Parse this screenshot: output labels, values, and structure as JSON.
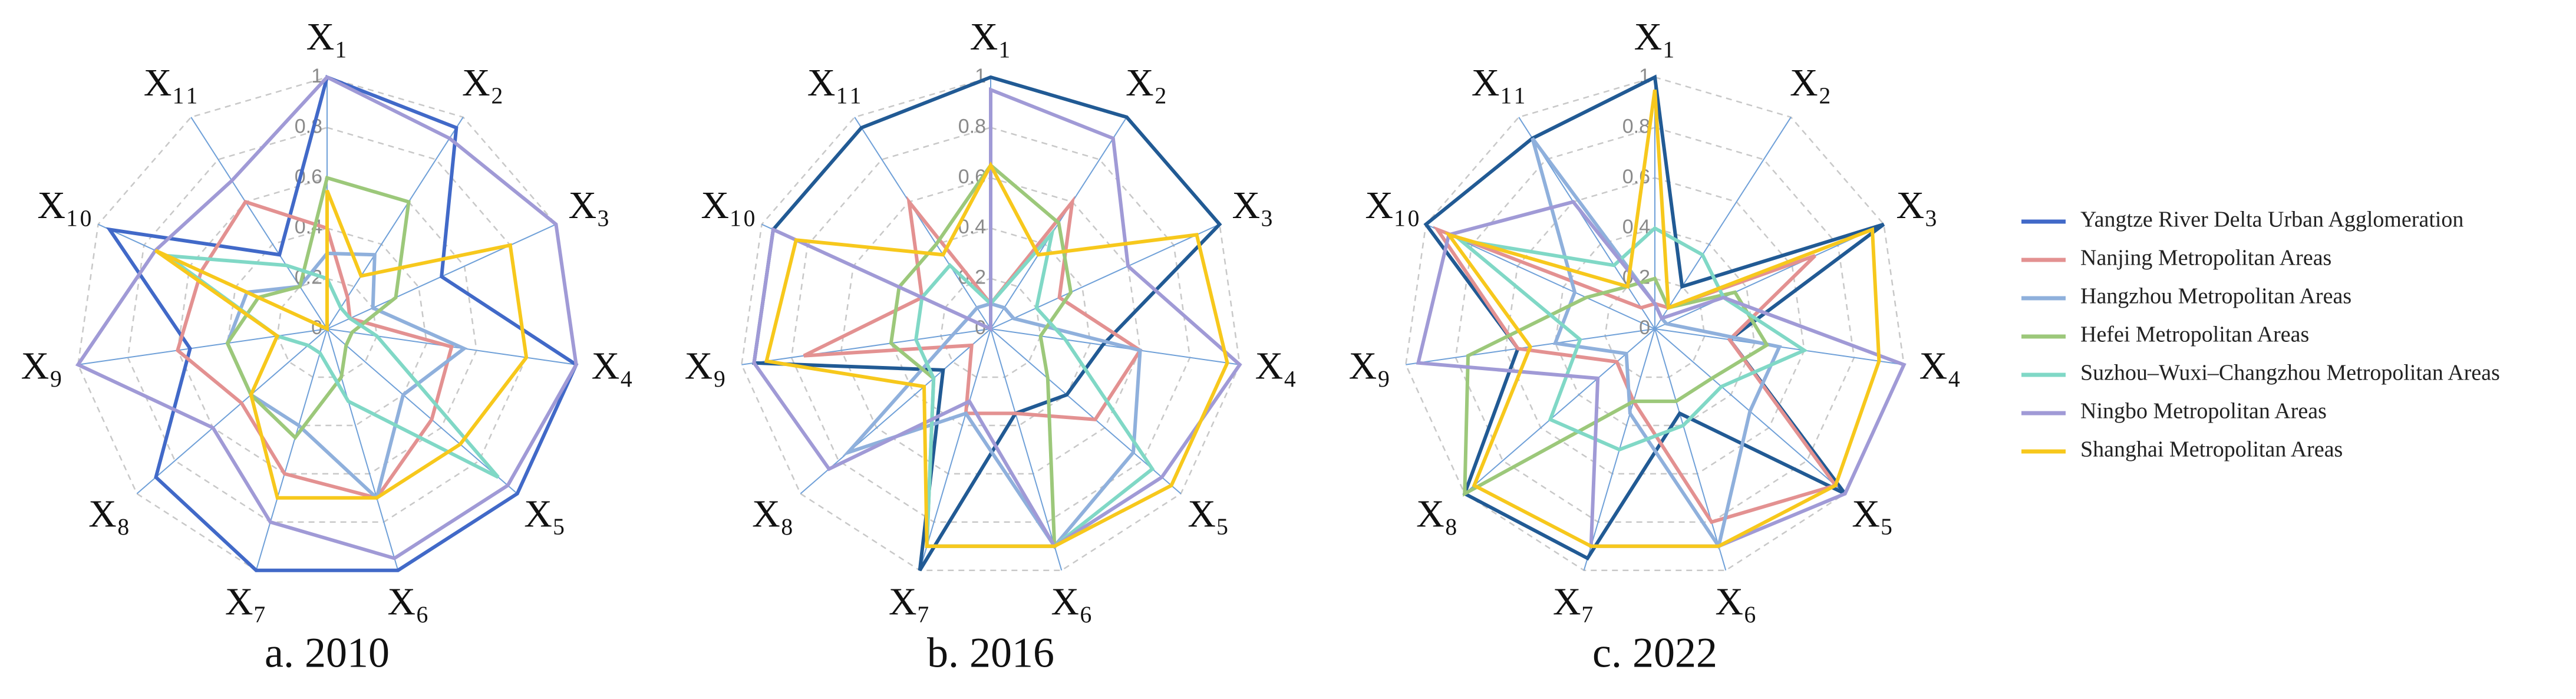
{
  "chart_data": [
    {
      "type": "radar",
      "title": "a. 2010",
      "categories": [
        "X₁",
        "X₂",
        "X₃",
        "X₄",
        "X₅",
        "X₆",
        "X₇",
        "X₈",
        "X₉",
        "X₁₀",
        "X₁₁"
      ],
      "rlim": [
        0,
        1
      ],
      "rticks": [
        0,
        0.2,
        0.4,
        0.6,
        0.8,
        1
      ],
      "series": [
        {
          "name": "Yangtze River Delta Urban Agglomeration",
          "color": "#4169c8",
          "values": [
            1,
            0.95,
            0.5,
            1,
            1,
            1,
            1,
            0.9,
            0.55,
            0.95,
            0.35
          ]
        },
        {
          "name": "Nanjing Metropolitan Areas",
          "color": "#e39191",
          "values": [
            0.4,
            0.15,
            0.1,
            0.5,
            0.55,
            0.7,
            0.6,
            0.45,
            0.6,
            0.55,
            0.6
          ]
        },
        {
          "name": "Hangzhou Metropolitan Areas",
          "color": "#8fb0dc",
          "values": [
            0.3,
            0.35,
            0.2,
            0.55,
            0.4,
            0.7,
            0.4,
            0.4,
            0.4,
            0.35,
            0.2
          ]
        },
        {
          "name": "Hefei Metropolitan Areas",
          "color": "#9cc87a",
          "values": [
            0.6,
            0.6,
            0.3,
            0.1,
            0.1,
            0.2,
            0.45,
            0.4,
            0.4,
            0.3,
            0.2
          ]
        },
        {
          "name": "Suzhou–Wuxi–Changzhou Metropolitan Areas",
          "color": "#80d8c6",
          "values": [
            0.2,
            0.1,
            0.1,
            0.2,
            0.9,
            0.3,
            0.1,
            0.1,
            0.2,
            0.7,
            0.3
          ]
        },
        {
          "name": "Ningbo Metropolitan Areas",
          "color": "#a09ad6",
          "values": [
            1,
            0.9,
            1,
            1,
            0.95,
            0.95,
            0.8,
            0.6,
            1,
            0.75,
            0.7
          ]
        },
        {
          "name": "Shanghai Metropolitan Areas",
          "color": "#f7c81c",
          "values": [
            0.55,
            0.25,
            0.8,
            0.8,
            0.7,
            0.7,
            0.7,
            0.4,
            0.2,
            0.75,
            0
          ]
        }
      ]
    },
    {
      "type": "radar",
      "title": "b. 2016",
      "categories": [
        "X₁",
        "X₂",
        "X₃",
        "X₄",
        "X₅",
        "X₆",
        "X₇",
        "X₈",
        "X₉",
        "X₁₀",
        "X₁₁"
      ],
      "rlim": [
        0,
        1
      ],
      "rticks": [
        0,
        0.2,
        0.4,
        0.6,
        0.8,
        1
      ],
      "series": [
        {
          "color": "#215a94",
          "values": [
            1,
            1,
            1,
            0.45,
            0.4,
            0.35,
            1,
            0.25,
            0.95,
            0.95,
            0.95
          ]
        },
        {
          "color": "#e39191",
          "values": [
            0.1,
            0.6,
            0.3,
            0.6,
            0.55,
            0.35,
            0.35,
            0.1,
            0.75,
            0.3,
            0.6
          ]
        },
        {
          "color": "#8fb0dc",
          "values": [
            0.1,
            0.1,
            0.1,
            0.6,
            0.75,
            0.9,
            0.35,
            0.75,
            0.15,
            0.1,
            0.1
          ]
        },
        {
          "color": "#9cc87a",
          "values": [
            0.65,
            0.5,
            0.35,
            0.2,
            0.3,
            0.9,
            0.9,
            0.3,
            0.4,
            0.4,
            0.4
          ]
        },
        {
          "color": "#80d8c6",
          "values": [
            0.1,
            0.45,
            0.2,
            0.3,
            0.85,
            0.9,
            0.9,
            0.3,
            0.3,
            0.3,
            0.3
          ]
        },
        {
          "color": "#a09ad6",
          "values": [
            0.95,
            0.9,
            0.6,
            1,
            0.9,
            0.9,
            0.3,
            0.85,
            0.95,
            0.95,
            0
          ]
        },
        {
          "color": "#f7c81c",
          "values": [
            0.65,
            0.35,
            0.9,
            0.95,
            0.95,
            0.9,
            0.9,
            0.35,
            0.9,
            0.85,
            0.35
          ]
        }
      ]
    },
    {
      "type": "radar",
      "title": "c. 2022",
      "categories": [
        "X₁",
        "X₂",
        "X₃",
        "X₄",
        "X₅",
        "X₆",
        "X₇",
        "X₈",
        "X₉",
        "X₁₀",
        "X₁₁"
      ],
      "rlim": [
        0,
        1
      ],
      "rticks": [
        0,
        0.2,
        0.4,
        0.6,
        0.8,
        1
      ],
      "series": [
        {
          "color": "#215a94",
          "values": [
            1,
            0.2,
            1,
            0.3,
            1,
            0.35,
            0.95,
            1,
            0.55,
            1,
            0.9
          ]
        },
        {
          "color": "#e39191",
          "values": [
            0.1,
            0.1,
            0.7,
            0.3,
            0.95,
            0.8,
            0.3,
            0.2,
            0.55,
            0.95,
            0.1
          ]
        },
        {
          "color": "#8fb0dc",
          "values": [
            0.1,
            0.05,
            0.05,
            0.5,
            0.5,
            0.9,
            0.35,
            0.15,
            0.4,
            0.35,
            0.9
          ]
        },
        {
          "color": "#9cc87a",
          "values": [
            0.2,
            0.1,
            0.35,
            0.45,
            0.3,
            0.3,
            0.3,
            1,
            0.75,
            0.3,
            0.2
          ]
        },
        {
          "color": "#80d8c6",
          "values": [
            0.4,
            0.35,
            0.3,
            0.6,
            0.35,
            0.4,
            0.5,
            0.55,
            0.3,
            0.85,
            0.3
          ]
        },
        {
          "color": "#a09ad6",
          "values": [
            0.1,
            0.05,
            0.3,
            1,
            1,
            0.9,
            0.9,
            0.3,
            0.95,
            0.9,
            0.6
          ]
        },
        {
          "color": "#f7c81c",
          "values": [
            0.95,
            0.1,
            0.95,
            0.9,
            0.95,
            0.9,
            0.9,
            0.95,
            0.5,
            0.9,
            0.2
          ]
        }
      ]
    }
  ]
}
